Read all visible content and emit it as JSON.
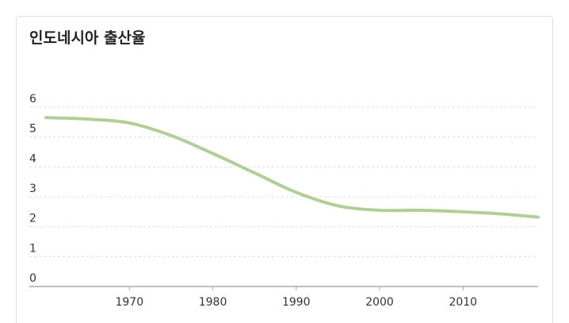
{
  "chart_data": {
    "type": "line",
    "title": "인도네시아 출산율",
    "x": [
      1960,
      1965,
      1970,
      1975,
      1980,
      1985,
      1990,
      1995,
      2000,
      2005,
      2010,
      2015,
      2019
    ],
    "series": [
      {
        "color": "#b0cf97",
        "values": [
          5.65,
          5.6,
          5.47,
          5.05,
          4.45,
          3.8,
          3.15,
          2.7,
          2.55,
          2.55,
          2.5,
          2.42,
          2.32
        ]
      }
    ],
    "xlim": [
      1958,
      2019
    ],
    "xticks": [
      1970,
      1980,
      1990,
      2000,
      2010
    ],
    "ylim": [
      0,
      6
    ],
    "yticks": [
      0,
      1,
      2,
      3,
      4,
      5,
      6
    ],
    "grid": true
  }
}
